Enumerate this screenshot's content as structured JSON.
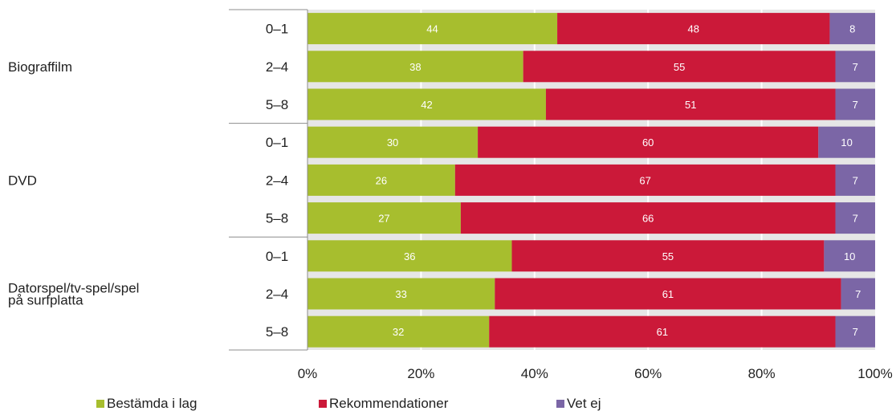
{
  "chart_data": {
    "type": "bar",
    "orientation": "horizontal",
    "stacked": true,
    "title": "",
    "xlabel": "",
    "ylabel": "",
    "xlim": [
      0,
      100
    ],
    "x_ticks": [
      "0%",
      "20%",
      "40%",
      "60%",
      "80%",
      "100%"
    ],
    "grid": true,
    "legend_position": "bottom",
    "groups": [
      {
        "label": "Biograffilm",
        "rows": [
          "0–1",
          "2–4",
          "5–8"
        ]
      },
      {
        "label": "DVD",
        "rows": [
          "0–1",
          "2–4",
          "5–8"
        ]
      },
      {
        "label": "Datorspel/tv-spel/spel på surfplatta",
        "label_lines": [
          "Datorspel/tv-spel/spel",
          "på surfplatta"
        ],
        "rows": [
          "0–1",
          "2–4",
          "5–8"
        ]
      }
    ],
    "series": [
      {
        "name": "Bestämda i lag",
        "color": "#a7be2e",
        "values": [
          44,
          38,
          42,
          30,
          26,
          27,
          36,
          33,
          32
        ]
      },
      {
        "name": "Rekommendationer",
        "color": "#cb1939",
        "values": [
          48,
          55,
          51,
          60,
          67,
          66,
          55,
          61,
          61
        ]
      },
      {
        "name": "Vet ej",
        "color": "#7b66a6",
        "values": [
          8,
          7,
          7,
          10,
          7,
          7,
          10,
          7,
          7
        ]
      }
    ]
  },
  "colors": {
    "background": "#e6e6e6",
    "grid": "#ffffff",
    "axis_line": "#8c8c8c",
    "segment_label": "#ffffff"
  }
}
